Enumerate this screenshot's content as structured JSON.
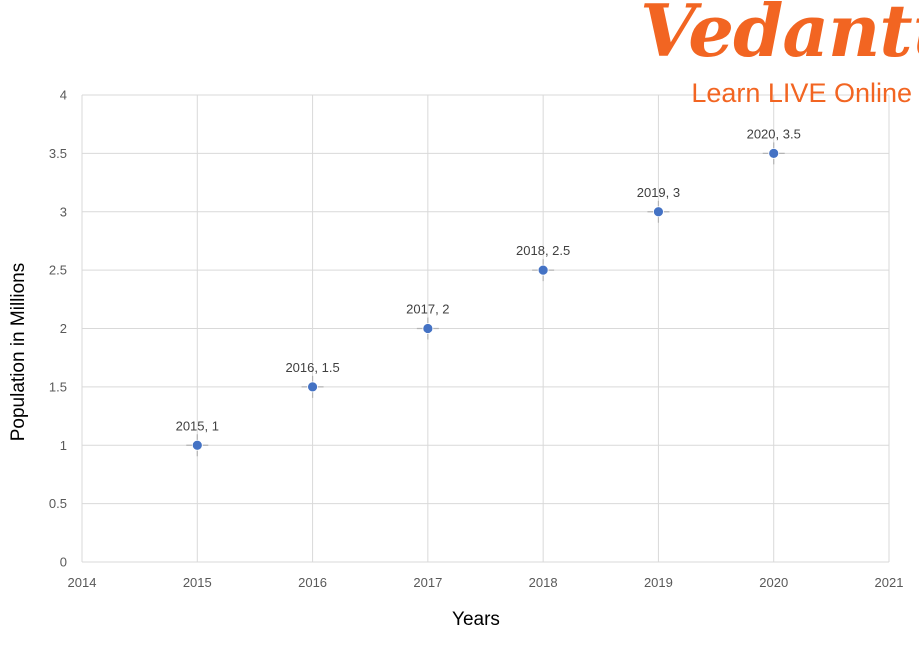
{
  "logo": {
    "word": "Vedantu",
    "tagline": "Learn LIVE Online",
    "color": "#f26522"
  },
  "chart_data": {
    "type": "scatter",
    "xlabel": "Years",
    "ylabel": "Population in Millions",
    "xlim": [
      2014,
      2021
    ],
    "ylim": [
      0,
      4
    ],
    "x_ticks": [
      2014,
      2015,
      2016,
      2017,
      2018,
      2019,
      2020,
      2021
    ],
    "y_ticks": [
      "0",
      "0.5",
      "1",
      "1.5",
      "2",
      "2.5",
      "3",
      "3.5",
      "4"
    ],
    "grid": true,
    "legend": "none",
    "marker_color": "#4472c4",
    "points": [
      {
        "x": 2015,
        "y": 1,
        "label": "2015, 1"
      },
      {
        "x": 2016,
        "y": 1.5,
        "label": "2016, 1.5"
      },
      {
        "x": 2017,
        "y": 2,
        "label": "2017, 2"
      },
      {
        "x": 2018,
        "y": 2.5,
        "label": "2018, 2.5"
      },
      {
        "x": 2019,
        "y": 3,
        "label": "2019, 3"
      },
      {
        "x": 2020,
        "y": 3.5,
        "label": "2020, 3.5"
      }
    ]
  }
}
